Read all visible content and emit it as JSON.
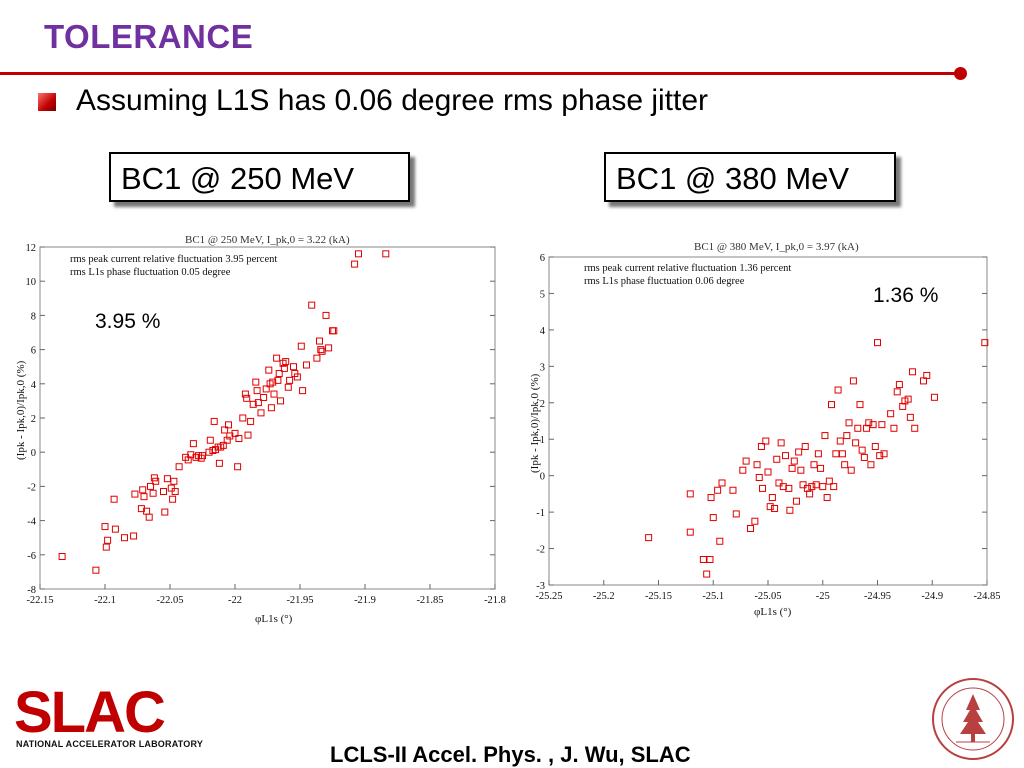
{
  "slide": {
    "title": "TOLERANCE",
    "bullet": "Assuming L1S has 0.06 degree rms phase jitter",
    "label_left": "BC1 @ 250 MeV",
    "label_right": "BC1 @ 380 MeV",
    "pct_left": "3.95 %",
    "pct_right": "1.36 %",
    "footer": "LCLS-II Accel. Phys. , J. Wu, SLAC",
    "logo_text": "SLAC",
    "logo_sub": "NATIONAL ACCELERATOR LABORATORY",
    "accent_color": "#c00000",
    "title_color": "#7030a0"
  },
  "chart_data": [
    {
      "type": "scatter",
      "title": "BC1 @ 250 MeV, I_pk,0 = 3.22 (kA)",
      "annotations": [
        "rms peak current relative fluctuation 3.95 percent",
        "rms L1s phase fluctuation 0.05 degree"
      ],
      "xlabel": "φL1s (°)",
      "ylabel": "(Ipk - Ipk,0)/Ipk,0 (%)",
      "xlim": [
        -22.15,
        -21.8
      ],
      "ylim": [
        -8,
        12
      ],
      "xticks": [
        -22.15,
        -22.1,
        -22.05,
        -22,
        -21.95,
        -21.9,
        -21.85,
        -21.8
      ],
      "yticks": [
        -8,
        -6,
        -4,
        -2,
        0,
        2,
        4,
        6,
        8,
        10,
        12
      ],
      "marker_color": "#e00000",
      "points": [
        [
          -22.133,
          -6.1
        ],
        [
          -22.107,
          -6.9
        ],
        [
          -22.1,
          -4.35
        ],
        [
          -22.099,
          -5.55
        ],
        [
          -22.098,
          -5.15
        ],
        [
          -22.093,
          -2.75
        ],
        [
          -22.092,
          -4.5
        ],
        [
          -22.085,
          -5.0
        ],
        [
          -22.078,
          -4.9
        ],
        [
          -22.077,
          -2.45
        ],
        [
          -22.072,
          -3.3
        ],
        [
          -22.071,
          -2.2
        ],
        [
          -22.07,
          -2.6
        ],
        [
          -22.068,
          -3.45
        ],
        [
          -22.066,
          -3.8
        ],
        [
          -22.065,
          -2.0
        ],
        [
          -22.063,
          -2.4
        ],
        [
          -22.062,
          -1.5
        ],
        [
          -22.061,
          -1.7
        ],
        [
          -22.055,
          -2.3
        ],
        [
          -22.054,
          -3.5
        ],
        [
          -22.052,
          -1.55
        ],
        [
          -22.049,
          -2.1
        ],
        [
          -22.048,
          -2.75
        ],
        [
          -22.047,
          -1.7
        ],
        [
          -22.046,
          -2.3
        ],
        [
          -22.043,
          -0.85
        ],
        [
          -22.038,
          -0.3
        ],
        [
          -22.036,
          -0.45
        ],
        [
          -22.034,
          -0.15
        ],
        [
          -22.032,
          0.5
        ],
        [
          -22.03,
          -0.3
        ],
        [
          -22.028,
          -0.2
        ],
        [
          -22.026,
          -0.35
        ],
        [
          -22.025,
          -0.2
        ],
        [
          -22.02,
          0.0
        ],
        [
          -22.019,
          0.7
        ],
        [
          -22.017,
          0.1
        ],
        [
          -22.016,
          1.8
        ],
        [
          -22.015,
          0.15
        ],
        [
          -22.013,
          0.3
        ],
        [
          -22.012,
          -0.65
        ],
        [
          -22.011,
          0.3
        ],
        [
          -22.009,
          0.4
        ],
        [
          -22.008,
          1.3
        ],
        [
          -22.006,
          0.7
        ],
        [
          -22.005,
          1.6
        ],
        [
          -22.004,
          0.95
        ],
        [
          -22.0,
          1.1
        ],
        [
          -21.998,
          -0.85
        ],
        [
          -21.997,
          0.8
        ],
        [
          -21.994,
          2.0
        ],
        [
          -21.992,
          3.4
        ],
        [
          -21.991,
          3.15
        ],
        [
          -21.99,
          1.0
        ],
        [
          -21.988,
          1.8
        ],
        [
          -21.986,
          2.8
        ],
        [
          -21.984,
          4.1
        ],
        [
          -21.983,
          3.6
        ],
        [
          -21.982,
          2.9
        ],
        [
          -21.98,
          2.3
        ],
        [
          -21.978,
          3.2
        ],
        [
          -21.976,
          3.7
        ],
        [
          -21.974,
          4.8
        ],
        [
          -21.973,
          4.0
        ],
        [
          -21.972,
          2.6
        ],
        [
          -21.971,
          4.1
        ],
        [
          -21.97,
          3.4
        ],
        [
          -21.968,
          5.5
        ],
        [
          -21.967,
          4.2
        ],
        [
          -21.966,
          4.6
        ],
        [
          -21.965,
          3.0
        ],
        [
          -21.963,
          5.2
        ],
        [
          -21.962,
          4.9
        ],
        [
          -21.961,
          5.3
        ],
        [
          -21.959,
          3.8
        ],
        [
          -21.958,
          4.2
        ],
        [
          -21.955,
          5.0
        ],
        [
          -21.954,
          4.6
        ],
        [
          -21.952,
          4.4
        ],
        [
          -21.949,
          6.2
        ],
        [
          -21.948,
          3.6
        ],
        [
          -21.945,
          5.1
        ],
        [
          -21.941,
          8.6
        ],
        [
          -21.937,
          5.5
        ],
        [
          -21.935,
          6.5
        ],
        [
          -21.934,
          6.0
        ],
        [
          -21.933,
          5.9
        ],
        [
          -21.93,
          8.0
        ],
        [
          -21.928,
          6.1
        ],
        [
          -21.925,
          7.1
        ],
        [
          -21.924,
          7.1
        ],
        [
          -21.908,
          11.0
        ],
        [
          -21.905,
          11.6
        ],
        [
          -21.884,
          11.6
        ]
      ]
    },
    {
      "type": "scatter",
      "title": "BC1 @ 380 MeV, I_pk,0 = 3.97 (kA)",
      "annotations": [
        "rms peak current relative fluctuation 1.36 percent",
        "rms L1s phase fluctuation 0.06 degree"
      ],
      "xlabel": "φL1s (°)",
      "ylabel": "(Ipk - Ipk,0)/Ipk,0 (%)",
      "xlim": [
        -25.25,
        -24.85
      ],
      "ylim": [
        -3,
        6
      ],
      "xticks": [
        -25.25,
        -25.2,
        -25.15,
        -25.1,
        -25.05,
        -25,
        -24.95,
        -24.9,
        -24.85
      ],
      "yticks": [
        -3,
        -2,
        -1,
        0,
        1,
        2,
        3,
        4,
        5,
        6
      ],
      "marker_color": "#e00000",
      "points": [
        [
          -25.159,
          -1.7
        ],
        [
          -25.121,
          -1.55
        ],
        [
          -25.121,
          -0.5
        ],
        [
          -25.109,
          -2.3
        ],
        [
          -25.106,
          -2.7
        ],
        [
          -25.103,
          -2.3
        ],
        [
          -25.102,
          -0.6
        ],
        [
          -25.1,
          -1.15
        ],
        [
          -25.096,
          -0.4
        ],
        [
          -25.094,
          -1.8
        ],
        [
          -25.092,
          -0.2
        ],
        [
          -25.082,
          -0.4
        ],
        [
          -25.079,
          -1.05
        ],
        [
          -25.073,
          0.15
        ],
        [
          -25.07,
          0.4
        ],
        [
          -25.066,
          -1.45
        ],
        [
          -25.062,
          -1.25
        ],
        [
          -25.06,
          0.3
        ],
        [
          -25.058,
          -0.05
        ],
        [
          -25.056,
          0.8
        ],
        [
          -25.055,
          -0.35
        ],
        [
          -25.052,
          0.95
        ],
        [
          -25.05,
          0.1
        ],
        [
          -25.048,
          -0.85
        ],
        [
          -25.046,
          -0.6
        ],
        [
          -25.044,
          -0.9
        ],
        [
          -25.042,
          0.45
        ],
        [
          -25.04,
          -0.2
        ],
        [
          -25.038,
          0.9
        ],
        [
          -25.036,
          -0.3
        ],
        [
          -25.034,
          0.55
        ],
        [
          -25.031,
          -0.35
        ],
        [
          -25.03,
          -0.95
        ],
        [
          -25.028,
          0.2
        ],
        [
          -25.026,
          0.4
        ],
        [
          -25.024,
          -0.7
        ],
        [
          -25.022,
          0.65
        ],
        [
          -25.02,
          0.15
        ],
        [
          -25.018,
          -0.25
        ],
        [
          -25.016,
          0.8
        ],
        [
          -25.014,
          -0.35
        ],
        [
          -25.012,
          -0.5
        ],
        [
          -25.01,
          -0.3
        ],
        [
          -25.008,
          0.3
        ],
        [
          -25.006,
          -0.25
        ],
        [
          -25.004,
          0.6
        ],
        [
          -25.002,
          0.2
        ],
        [
          -25.0,
          -0.3
        ],
        [
          -24.998,
          1.1
        ],
        [
          -24.996,
          -0.6
        ],
        [
          -24.994,
          -0.15
        ],
        [
          -24.992,
          1.95
        ],
        [
          -24.99,
          -0.3
        ],
        [
          -24.988,
          0.6
        ],
        [
          -24.986,
          2.35
        ],
        [
          -24.984,
          0.95
        ],
        [
          -24.982,
          0.6
        ],
        [
          -24.98,
          0.3
        ],
        [
          -24.978,
          1.1
        ],
        [
          -24.976,
          1.45
        ],
        [
          -24.974,
          0.15
        ],
        [
          -24.972,
          2.6
        ],
        [
          -24.97,
          0.9
        ],
        [
          -24.968,
          1.3
        ],
        [
          -24.966,
          1.95
        ],
        [
          -24.964,
          0.7
        ],
        [
          -24.962,
          0.5
        ],
        [
          -24.96,
          1.3
        ],
        [
          -24.958,
          1.45
        ],
        [
          -24.956,
          0.3
        ],
        [
          -24.954,
          1.4
        ],
        [
          -24.952,
          0.8
        ],
        [
          -24.95,
          3.65
        ],
        [
          -24.948,
          0.55
        ],
        [
          -24.946,
          1.4
        ],
        [
          -24.944,
          0.6
        ],
        [
          -24.938,
          1.7
        ],
        [
          -24.935,
          1.3
        ],
        [
          -24.932,
          2.3
        ],
        [
          -24.93,
          2.5
        ],
        [
          -24.927,
          1.9
        ],
        [
          -24.925,
          2.05
        ],
        [
          -24.922,
          2.1
        ],
        [
          -24.92,
          1.6
        ],
        [
          -24.918,
          2.85
        ],
        [
          -24.916,
          1.3
        ],
        [
          -24.908,
          2.6
        ],
        [
          -24.905,
          2.75
        ],
        [
          -24.898,
          2.15
        ],
        [
          -24.852,
          3.65
        ]
      ]
    }
  ]
}
